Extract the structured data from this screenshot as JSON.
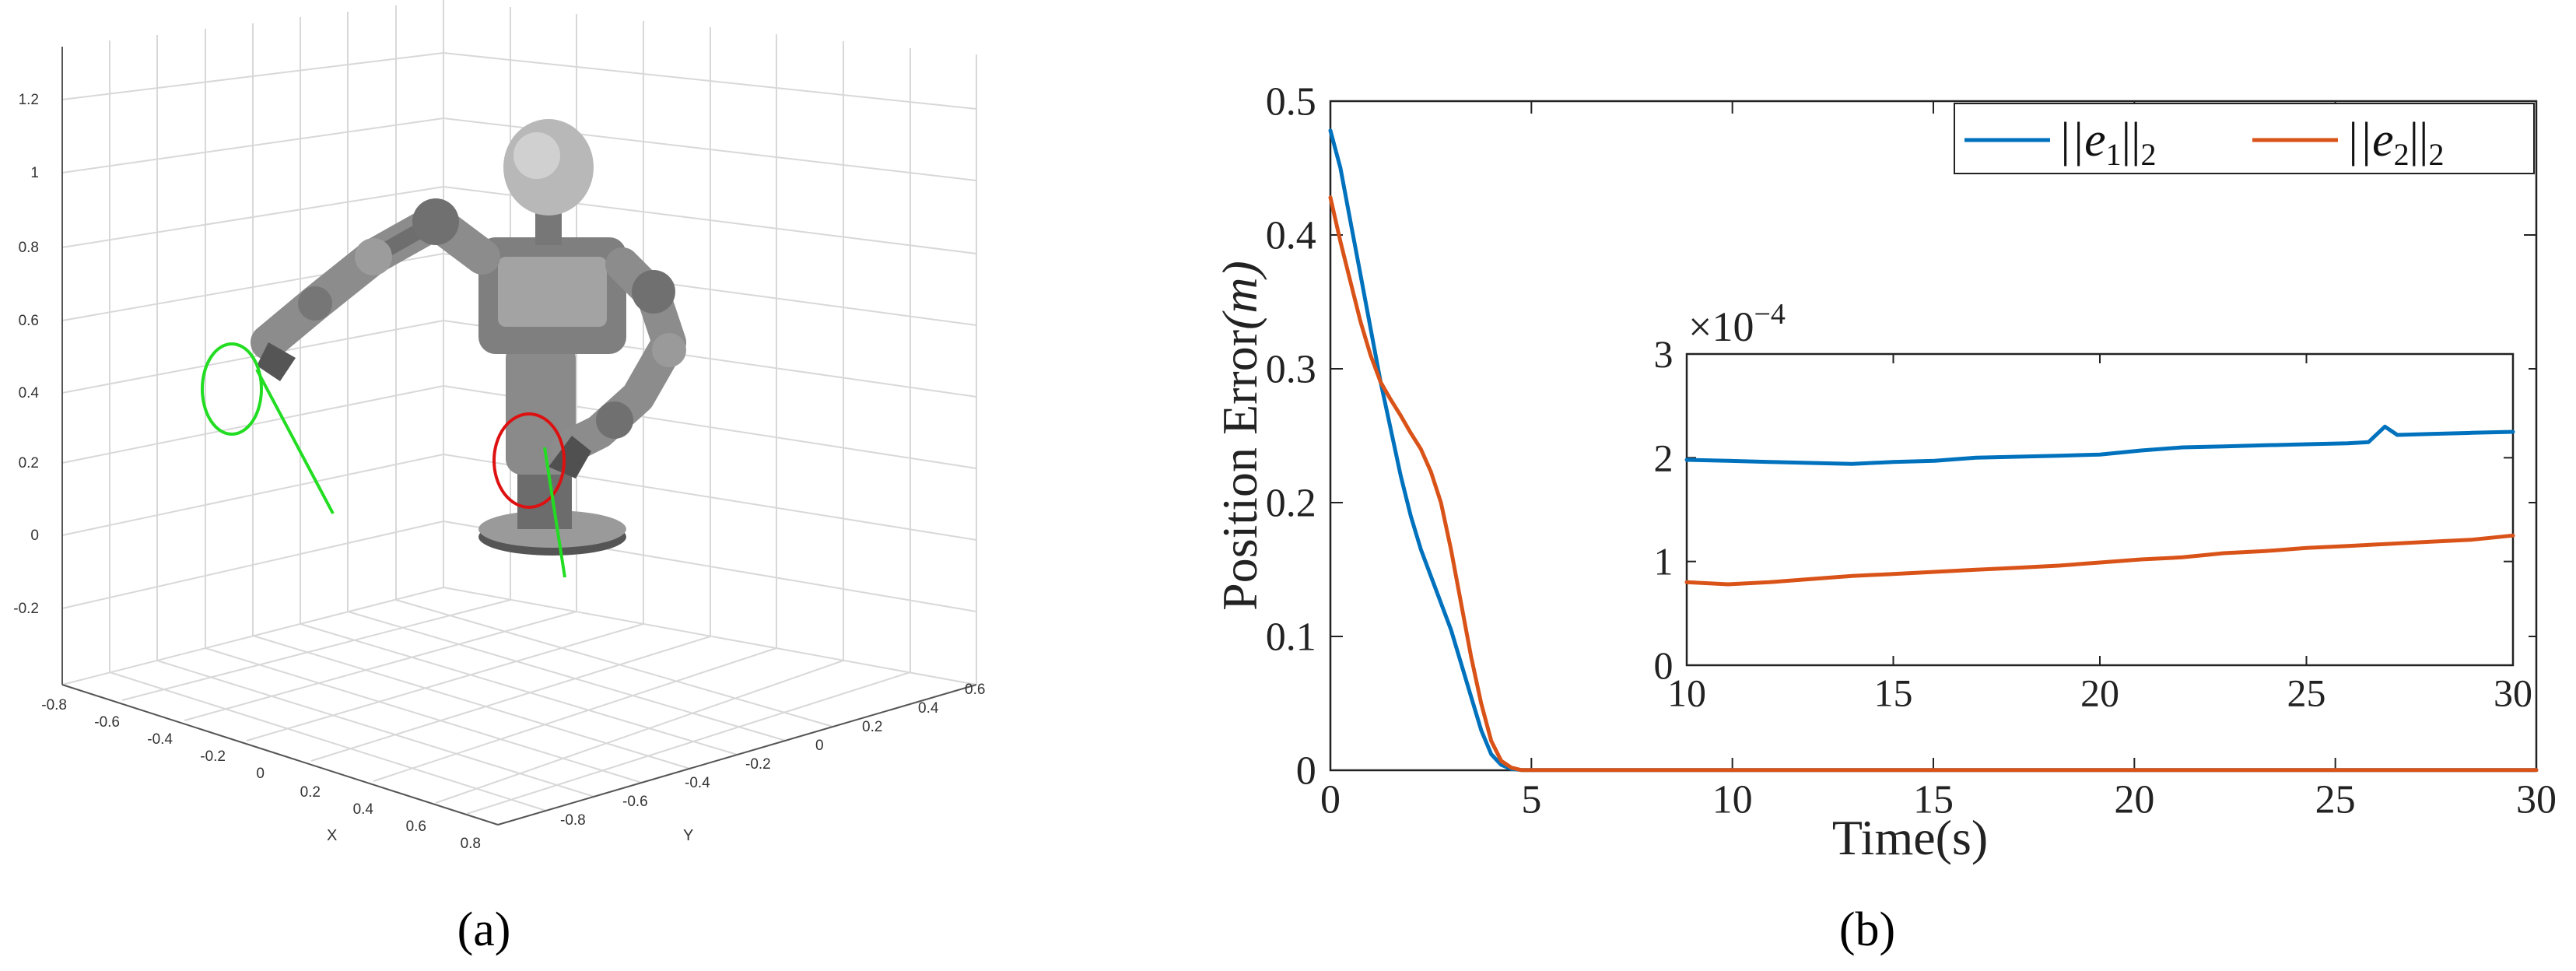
{
  "captions": {
    "a": "(a)",
    "b": "(b)"
  },
  "colors": {
    "series1": "#0072bd",
    "series2": "#d95319",
    "trajectory_left": "#22dd22",
    "trajectory_right": "#dd1111",
    "robot": "#8f8f8f",
    "grid": "#dcdcdc"
  },
  "panel_a": {
    "axes": {
      "z_ticks": [
        "1.2",
        "1",
        "0.8",
        "0.6",
        "0.4",
        "0.2",
        "0",
        "-0.2"
      ],
      "x_label": "X",
      "x_ticks": [
        "-0.8",
        "-0.6",
        "-0.4",
        "-0.2",
        "0",
        "0.2",
        "0.4",
        "0.6",
        "0.8"
      ],
      "y_label": "Y",
      "y_ticks": [
        "-0.8",
        "-0.6",
        "-0.4",
        "-0.2",
        "0",
        "0.2",
        "0.4",
        "0.6"
      ]
    }
  },
  "chart_data": [
    {
      "type": "line",
      "id": "main",
      "title": "",
      "xlabel": "Time(s)",
      "ylabel_prefix": "Position Error",
      "ylabel_unit": "(m)",
      "xlim": [
        0,
        30
      ],
      "ylim": [
        0,
        0.5
      ],
      "xticks": [
        0,
        5,
        10,
        15,
        20,
        25,
        30
      ],
      "yticks": [
        0,
        0.1,
        0.2,
        0.3,
        0.4,
        0.5
      ],
      "grid": false,
      "legend_position": "top-right",
      "series": [
        {
          "name": "||e1||2",
          "legend_base": "||e",
          "legend_sub": "1",
          "legend_tail": "||",
          "legend_sub2": "2",
          "x": [
            0,
            0.25,
            0.5,
            0.75,
            1.0,
            1.25,
            1.5,
            1.75,
            2.0,
            2.25,
            2.5,
            2.75,
            3.0,
            3.25,
            3.5,
            3.75,
            4.0,
            4.25,
            4.5,
            4.75,
            5,
            10,
            15,
            20,
            25,
            30
          ],
          "y": [
            0.478,
            0.45,
            0.41,
            0.37,
            0.33,
            0.29,
            0.255,
            0.22,
            0.19,
            0.165,
            0.145,
            0.125,
            0.105,
            0.08,
            0.055,
            0.03,
            0.012,
            0.004,
            0.001,
            0.0002,
            0.0002,
            0.0002,
            0.0002,
            0.0002,
            0.0002,
            0.0002
          ]
        },
        {
          "name": "||e2||2",
          "legend_base": "||e",
          "legend_sub": "2",
          "legend_tail": "||",
          "legend_sub2": "2",
          "x": [
            0,
            0.25,
            0.5,
            0.75,
            1.0,
            1.25,
            1.5,
            1.75,
            2.0,
            2.25,
            2.5,
            2.75,
            3.0,
            3.25,
            3.5,
            3.75,
            4.0,
            4.25,
            4.5,
            4.75,
            5,
            10,
            15,
            20,
            25,
            30
          ],
          "y": [
            0.428,
            0.395,
            0.365,
            0.335,
            0.31,
            0.29,
            0.277,
            0.265,
            0.252,
            0.24,
            0.223,
            0.2,
            0.165,
            0.125,
            0.085,
            0.05,
            0.022,
            0.007,
            0.002,
            0.0001,
            0.0001,
            0.0001,
            0.0001,
            0.0001,
            0.0001,
            0.0001
          ]
        }
      ]
    },
    {
      "type": "line",
      "id": "inset",
      "title": "",
      "xlabel": "",
      "ylabel": "",
      "xlim": [
        10,
        30
      ],
      "ylim": [
        0,
        3
      ],
      "xticks": [
        10,
        15,
        20,
        25,
        30
      ],
      "yticks": [
        0,
        1,
        2,
        3
      ],
      "y_multiplier_base": "×10",
      "y_multiplier_exponent": "−4",
      "grid": false,
      "series": [
        {
          "name": "||e1||2",
          "x": [
            10,
            11,
            12,
            13,
            14,
            15,
            16,
            17,
            18,
            19,
            20,
            21,
            22,
            23,
            24,
            25,
            26,
            26.5,
            26.9,
            27.2,
            28,
            29,
            30
          ],
          "y": [
            1.98,
            1.97,
            1.96,
            1.95,
            1.94,
            1.96,
            1.97,
            2.0,
            2.01,
            2.02,
            2.03,
            2.07,
            2.1,
            2.11,
            2.12,
            2.13,
            2.14,
            2.15,
            2.3,
            2.22,
            2.23,
            2.24,
            2.25
          ]
        },
        {
          "name": "||e2||2",
          "x": [
            10,
            11,
            12,
            13,
            14,
            15,
            16,
            17,
            18,
            19,
            20,
            21,
            22,
            23,
            24,
            25,
            26,
            27,
            28,
            29,
            30
          ],
          "y": [
            0.8,
            0.78,
            0.8,
            0.83,
            0.86,
            0.88,
            0.9,
            0.92,
            0.94,
            0.96,
            0.99,
            1.02,
            1.04,
            1.08,
            1.1,
            1.13,
            1.15,
            1.17,
            1.19,
            1.21,
            1.25
          ]
        }
      ]
    }
  ]
}
